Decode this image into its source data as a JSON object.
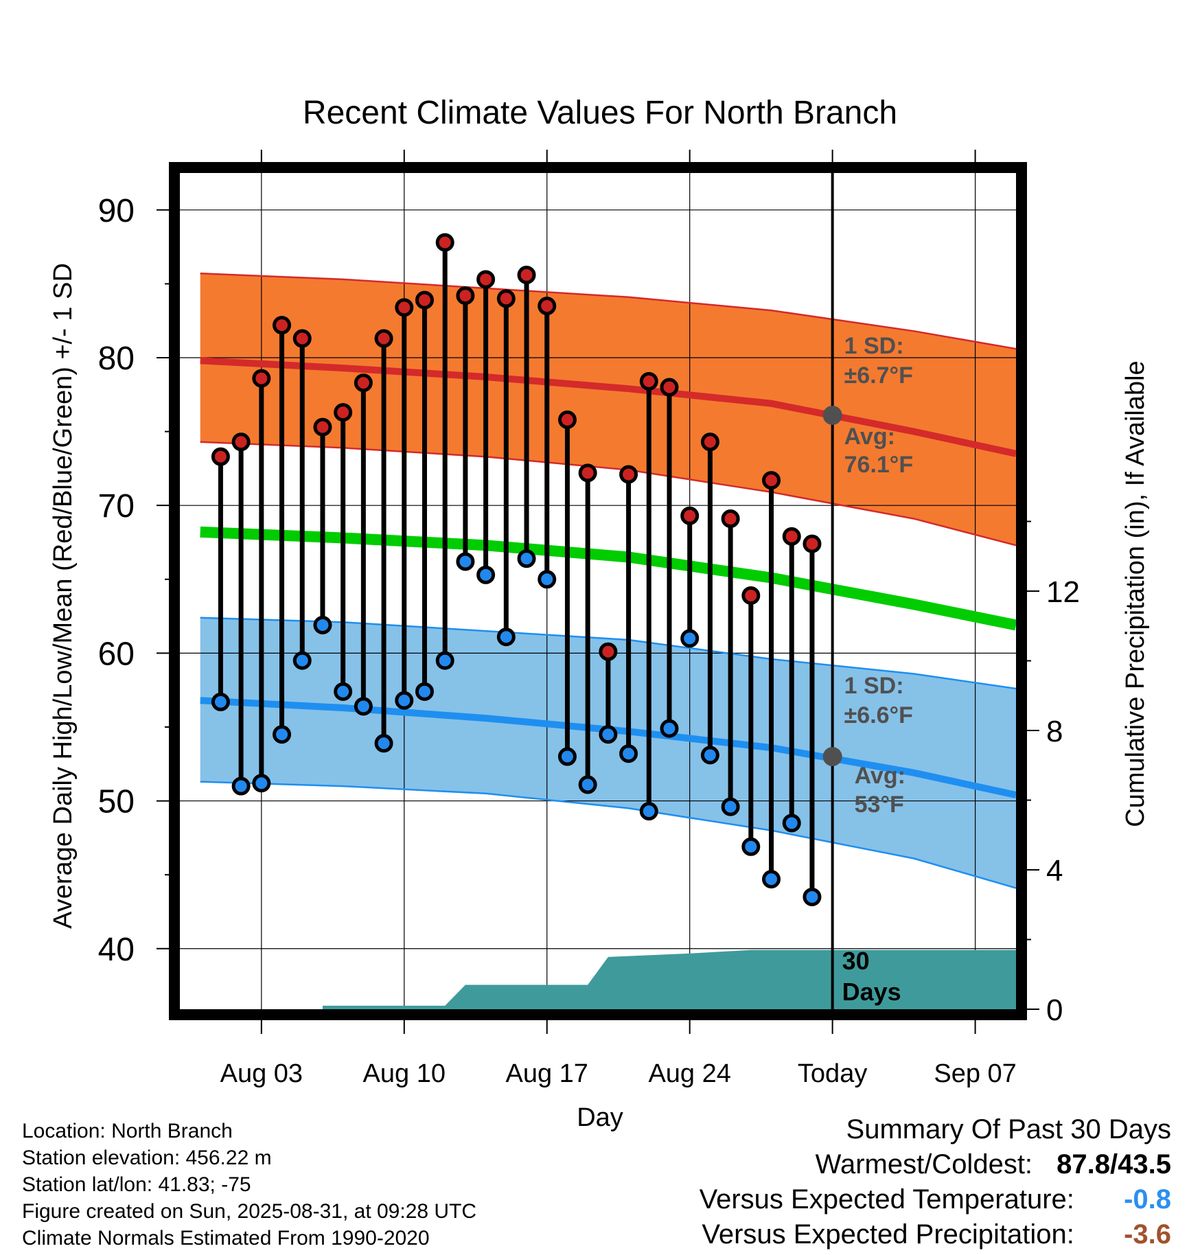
{
  "chart_data": {
    "type": "line",
    "title": "Recent Climate Values For North Branch",
    "xlabel": "Day",
    "ylabel": "Average Daily High/Low/Mean (Red/Blue/Green) +/- 1 SD",
    "y2label": "Cumulative Precipitation (in), If Available",
    "x_range": [
      "2025-07-30",
      "2025-09-09"
    ],
    "ylim": [
      35.9,
      92.5
    ],
    "y2lim": [
      0,
      24
    ],
    "yticks": [
      40,
      50,
      60,
      70,
      80,
      90
    ],
    "y2ticks": [
      0,
      4,
      8,
      12
    ],
    "xticks": [
      {
        "date": "2025-08-03",
        "label": "Aug 03"
      },
      {
        "date": "2025-08-10",
        "label": "Aug 10"
      },
      {
        "date": "2025-08-17",
        "label": "Aug 17"
      },
      {
        "date": "2025-08-24",
        "label": "Aug 24"
      },
      {
        "date": "2025-08-31",
        "label": "Today"
      },
      {
        "date": "2025-09-07",
        "label": "Sep 07"
      }
    ],
    "grid": true,
    "today": "2025-08-31",
    "days_label": "30\nDays",
    "colors": {
      "high_band": "#f47a30",
      "high_line": "#d42a2a",
      "low_band": "#86c1e8",
      "low_line": "#1e8ff0",
      "mean_line": "#00cc00",
      "precip": "#3f9b9b",
      "high_marker": "#cc2222",
      "low_marker": "#2288ee"
    },
    "daily": {
      "dates": [
        "2025-08-01",
        "2025-08-02",
        "2025-08-03",
        "2025-08-04",
        "2025-08-05",
        "2025-08-06",
        "2025-08-07",
        "2025-08-08",
        "2025-08-09",
        "2025-08-10",
        "2025-08-11",
        "2025-08-12",
        "2025-08-13",
        "2025-08-14",
        "2025-08-15",
        "2025-08-16",
        "2025-08-17",
        "2025-08-18",
        "2025-08-19",
        "2025-08-20",
        "2025-08-21",
        "2025-08-22",
        "2025-08-23",
        "2025-08-24",
        "2025-08-25",
        "2025-08-26",
        "2025-08-27",
        "2025-08-28",
        "2025-08-29",
        "2025-08-30"
      ],
      "high": [
        73.3,
        74.3,
        78.6,
        82.2,
        81.3,
        75.3,
        76.3,
        78.3,
        81.3,
        83.4,
        83.9,
        87.8,
        84.2,
        85.3,
        84.0,
        85.6,
        83.5,
        75.8,
        72.2,
        60.1,
        72.1,
        78.4,
        78.0,
        69.3,
        74.3,
        69.1,
        63.9,
        71.7,
        67.9,
        67.4
      ],
      "low": [
        56.7,
        51.0,
        51.2,
        54.5,
        59.5,
        61.9,
        57.4,
        56.4,
        53.9,
        56.8,
        57.4,
        59.5,
        66.2,
        65.3,
        61.1,
        66.4,
        65.0,
        53.0,
        51.1,
        54.5,
        53.2,
        49.3,
        54.9,
        61.0,
        53.1,
        49.6,
        46.9,
        44.7,
        48.5,
        43.5
      ]
    },
    "normals": {
      "dates": [
        "2025-07-31",
        "2025-08-07",
        "2025-08-14",
        "2025-08-21",
        "2025-08-28",
        "2025-09-04",
        "2025-09-09"
      ],
      "high_avg": [
        79.8,
        79.3,
        78.7,
        77.9,
        76.9,
        75.0,
        73.5
      ],
      "high_sd_upper": [
        85.7,
        85.3,
        84.7,
        84.1,
        83.2,
        81.8,
        80.6
      ],
      "high_sd_lower": [
        74.3,
        73.9,
        73.3,
        72.4,
        70.9,
        69.1,
        67.3
      ],
      "mean": [
        68.2,
        67.8,
        67.3,
        66.5,
        65.1,
        63.3,
        61.9
      ],
      "low_avg": [
        56.8,
        56.3,
        55.6,
        54.7,
        53.6,
        51.9,
        50.4
      ],
      "low_sd_upper": [
        62.4,
        62.1,
        61.5,
        60.9,
        59.6,
        58.6,
        57.6
      ],
      "low_sd_lower": [
        51.3,
        51.0,
        50.5,
        49.5,
        48.0,
        46.1,
        44.1
      ]
    },
    "precip": {
      "dates": [
        "2025-07-31",
        "2025-08-06",
        "2025-08-06",
        "2025-08-12",
        "2025-08-13",
        "2025-08-19",
        "2025-08-20",
        "2025-08-24",
        "2025-08-27",
        "2025-09-09"
      ],
      "values": [
        0,
        0,
        0.1,
        0.1,
        0.7,
        0.7,
        1.5,
        1.6,
        1.7,
        1.7
      ]
    },
    "annotations": {
      "high_sd_label": "1 SD:",
      "high_sd_value": "±6.7°F",
      "high_avg_label": "Avg:",
      "high_avg_value": "76.1°F",
      "low_sd_label": "1 SD:",
      "low_sd_value": "±6.6°F",
      "low_avg_label": "Avg:",
      "low_avg_value": "53°F",
      "today_high_avg": 76.1,
      "today_low_avg": 53.0
    }
  },
  "station": {
    "location": "Location: North Branch",
    "elevation": "Station elevation: 456.22 m",
    "latlon": "Station lat/lon: 41.83; -75",
    "created": "Figure created on Sun, 2025-08-31, at 09:28 UTC",
    "normals": "Climate Normals Estimated From 1990-2020"
  },
  "summary": {
    "title": "Summary Of Past 30 Days",
    "warmest_label": "Warmest/Coldest:",
    "warmest_value": "87.8/43.5",
    "temp_label": "Versus Expected Temperature:",
    "temp_value": "-0.8",
    "temp_color": "#2b8ff0",
    "precip_label": "Versus Expected Precipitation:",
    "precip_value": "-3.6",
    "precip_color": "#a0522d"
  }
}
